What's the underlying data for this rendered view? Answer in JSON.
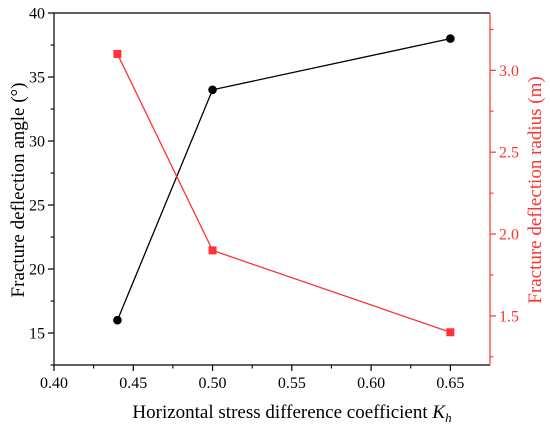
{
  "chart_data": {
    "type": "line",
    "title": "",
    "xlabel": "Horizontal stress difference coefficient ",
    "xlabel_symbol": "K",
    "xlabel_subscript": "h",
    "ylabel_left": "Fracture deflection angle (°)",
    "ylabel_right": "Fracture deflection radius (m)",
    "xlim": [
      0.4,
      0.675
    ],
    "ylim_left": [
      12.5,
      40
    ],
    "ylim_right": [
      1.2,
      3.35
    ],
    "x_ticks": [
      "0.40",
      "0.45",
      "0.50",
      "0.55",
      "0.60",
      "0.65"
    ],
    "y_left_ticks": [
      "15",
      "20",
      "25",
      "30",
      "35",
      "40"
    ],
    "y_right_ticks": [
      "1.5",
      "2.0",
      "2.5",
      "3.0"
    ],
    "grid": false,
    "series": [
      {
        "axis": "left",
        "color": "#000000",
        "marker": "circle",
        "x": [
          0.44,
          0.5,
          0.65
        ],
        "values": [
          16,
          34,
          38
        ]
      },
      {
        "axis": "right",
        "color": "#ff3333",
        "marker": "square",
        "x": [
          0.44,
          0.5,
          0.65
        ],
        "values": [
          3.1,
          1.9,
          1.4
        ]
      }
    ],
    "colors": {
      "left_axis": "#000000",
      "right_axis": "#ff3333"
    }
  }
}
